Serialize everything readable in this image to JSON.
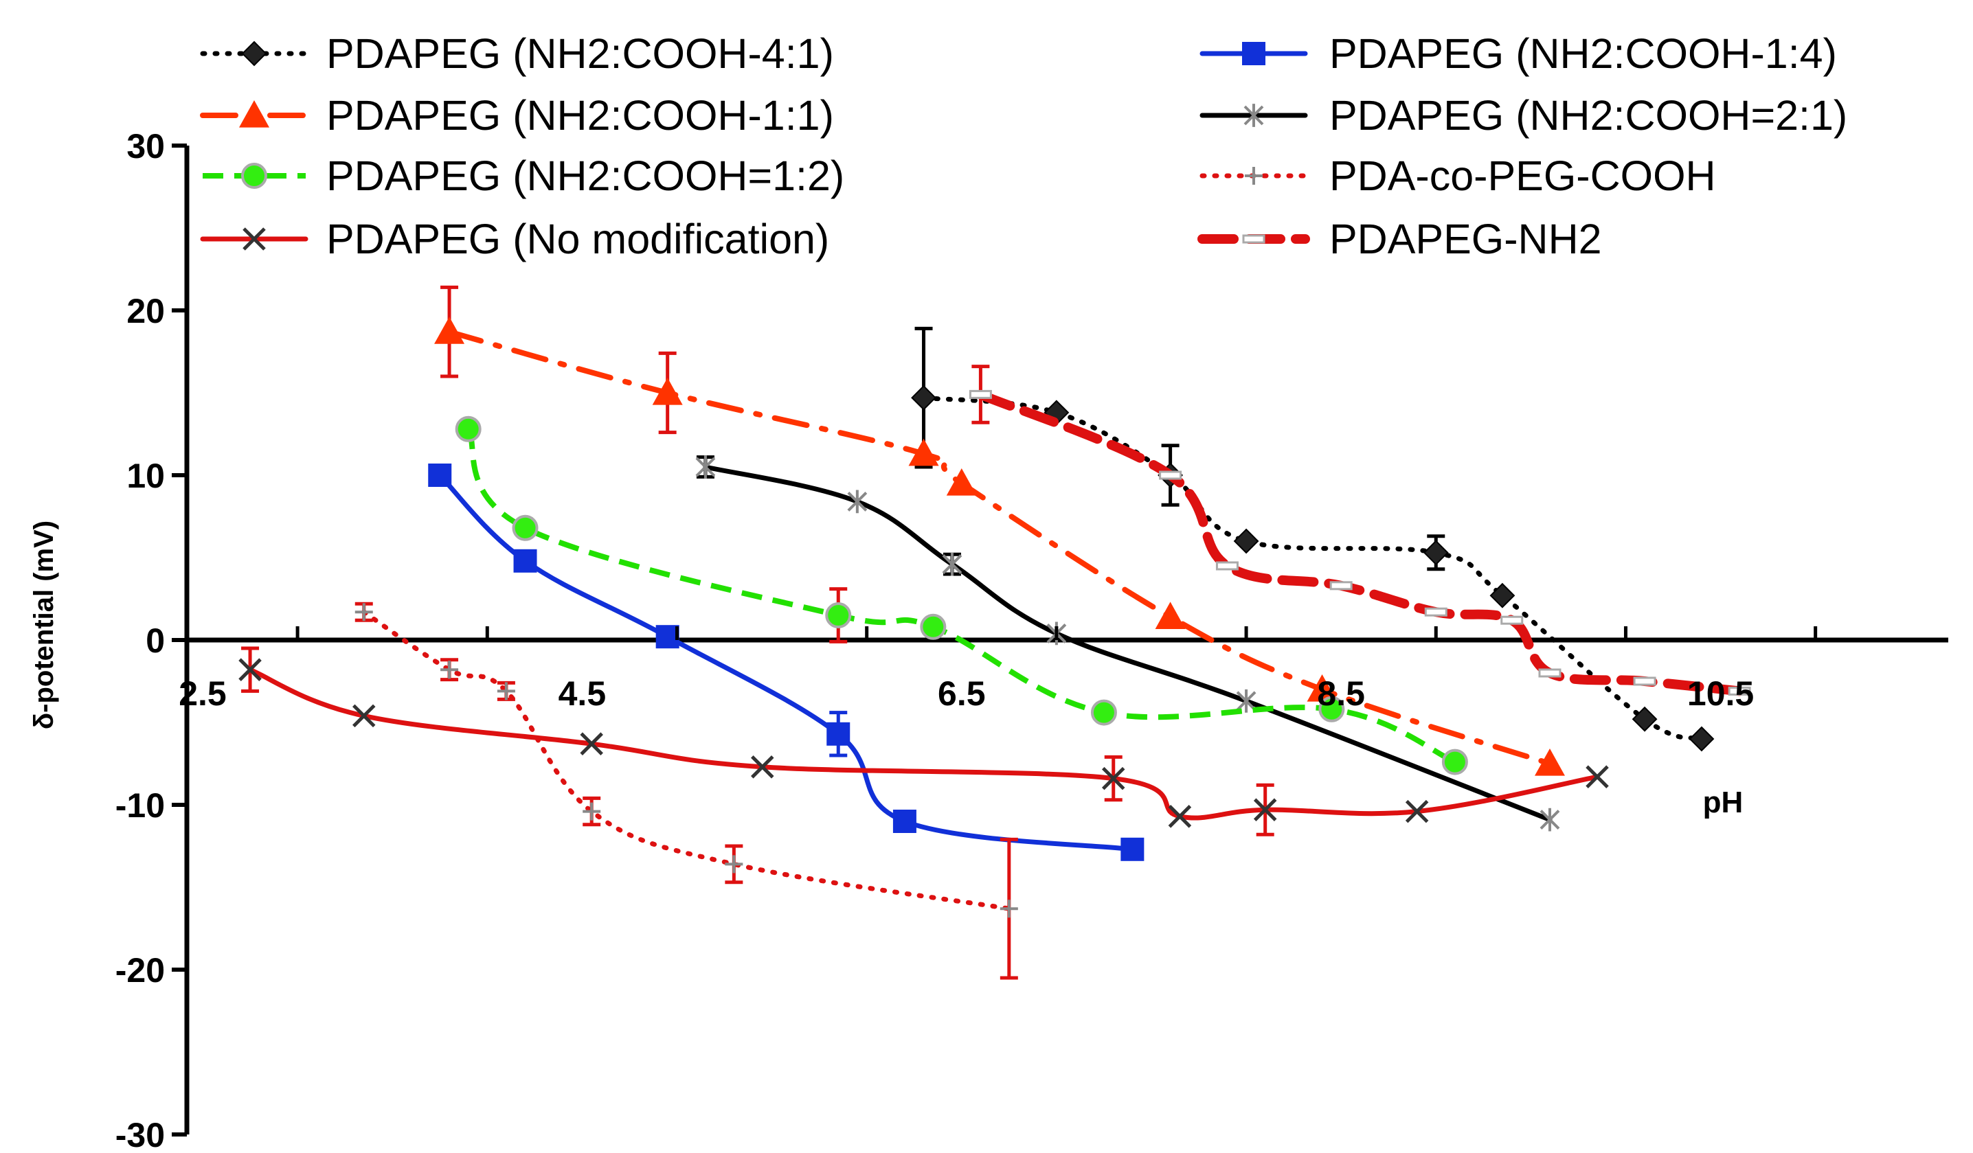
{
  "chart_data": {
    "type": "line",
    "title": "",
    "xlabel": "pH",
    "ylabel": "δ-potential (mV)",
    "xlim": [
      2.5,
      11.7
    ],
    "ylim": [
      -30,
      30
    ],
    "x_ticks": [
      "2.5",
      "4.5",
      "6.5",
      "8.5",
      "10.5"
    ],
    "y_ticks": [
      "30",
      "20",
      "10",
      "0",
      "-10",
      "-20",
      "-30"
    ],
    "legend_position": "top",
    "series": [
      {
        "name": "PDAPEG (NH2:COOH-4:1)",
        "color": "#000000",
        "line": "dotted",
        "marker": "diamond",
        "marker_color": "#222222",
        "x": [
          6.3,
          7.0,
          7.6,
          8.0,
          9.0,
          9.35,
          10.1,
          10.4
        ],
        "y": [
          14.7,
          13.8,
          10.0,
          6.0,
          5.3,
          2.7,
          -4.8,
          -6.0
        ],
        "err": [
          4.2,
          0,
          1.8,
          0,
          1.0,
          0,
          0,
          0
        ]
      },
      {
        "name": "PDAPEG (NH2:COOH-1:4)",
        "color": "#1130d8",
        "line": "solid",
        "marker": "square",
        "marker_color": "#1130d8",
        "x": [
          3.75,
          4.2,
          4.95,
          5.85,
          6.2,
          7.4
        ],
        "y": [
          10.0,
          4.8,
          0.2,
          -5.7,
          -11.0,
          -12.7
        ],
        "err": [
          0,
          0,
          0,
          1.3,
          0,
          0
        ]
      },
      {
        "name": "PDAPEG (NH2:COOH-1:1)",
        "color": "#ff3300",
        "line": "dashdot",
        "marker": "triangle",
        "marker_color": "#ff3300",
        "x": [
          3.8,
          4.95,
          6.3,
          6.5,
          7.6,
          8.4,
          9.6
        ],
        "y": [
          18.7,
          15.0,
          11.3,
          9.5,
          1.4,
          -3.0,
          -7.5
        ],
        "err": [
          2.7,
          2.4,
          0,
          0,
          0,
          0,
          0
        ]
      },
      {
        "name": "PDAPEG (NH2:COOH=2:1)",
        "color": "#000000",
        "line": "solid",
        "marker": "asterisk",
        "marker_color": "#888888",
        "x": [
          5.15,
          5.95,
          6.45,
          7.0,
          8.0,
          9.6
        ],
        "y": [
          10.5,
          8.4,
          4.6,
          0.4,
          -3.7,
          -10.9
        ],
        "err": [
          0.6,
          0,
          0.6,
          0,
          0,
          0
        ]
      },
      {
        "name": "PDAPEG (NH2:COOH=1:2)",
        "color": "#22e000",
        "line": "dashed",
        "marker": "circle",
        "marker_color": "#33ee11",
        "x": [
          3.9,
          4.2,
          5.85,
          6.35,
          7.25,
          8.45,
          9.1
        ],
        "y": [
          12.8,
          6.8,
          1.5,
          0.8,
          -4.4,
          -4.2,
          -7.4
        ],
        "err": [
          0,
          0,
          1.6,
          0,
          0,
          0,
          0
        ]
      },
      {
        "name": "PDA-co-PEG-COOH",
        "color": "#dd1111",
        "line": "dotted",
        "marker": "plus",
        "marker_color": "#888888",
        "x": [
          3.35,
          3.8,
          4.1,
          4.55,
          5.3,
          6.75
        ],
        "y": [
          1.7,
          -1.8,
          -3.1,
          -10.4,
          -13.6,
          -16.3
        ],
        "err": [
          0.5,
          0.6,
          0.5,
          0.8,
          1.1,
          4.2
        ]
      },
      {
        "name": "PDAPEG (No modification)",
        "color": "#dd1111",
        "line": "solid",
        "marker": "x",
        "marker_color": "#333333",
        "x": [
          2.75,
          3.35,
          4.55,
          5.45,
          7.3,
          7.65,
          8.1,
          8.9,
          9.85
        ],
        "y": [
          -1.8,
          -4.6,
          -6.3,
          -7.7,
          -8.4,
          -10.7,
          -10.3,
          -10.4,
          -8.3
        ],
        "err": [
          1.3,
          0,
          0,
          0,
          1.3,
          0,
          1.5,
          0,
          0
        ]
      },
      {
        "name": "PDAPEG-NH2",
        "color": "#dd1111",
        "line": "dashed_thick",
        "marker": "dash",
        "marker_color": "#aaaaaa",
        "x": [
          6.6,
          7.6,
          7.9,
          8.5,
          9.0,
          9.4,
          9.6,
          10.1,
          10.6
        ],
        "y": [
          14.9,
          10.0,
          4.5,
          3.3,
          1.7,
          1.2,
          -2.0,
          -2.5,
          -3.1
        ],
        "err": [
          1.7,
          0,
          0,
          0,
          0,
          0,
          0,
          0,
          0
        ]
      }
    ],
    "legend_columns": [
      [
        "PDAPEG (NH2:COOH-4:1)",
        "PDAPEG (NH2:COOH-1:1)",
        "PDAPEG (NH2:COOH=1:2)",
        "PDAPEG (No modification)"
      ],
      [
        "PDAPEG (NH2:COOH-1:4)",
        "PDAPEG (NH2:COOH=2:1)",
        "PDA-co-PEG-COOH",
        "PDAPEG-NH2"
      ]
    ]
  }
}
